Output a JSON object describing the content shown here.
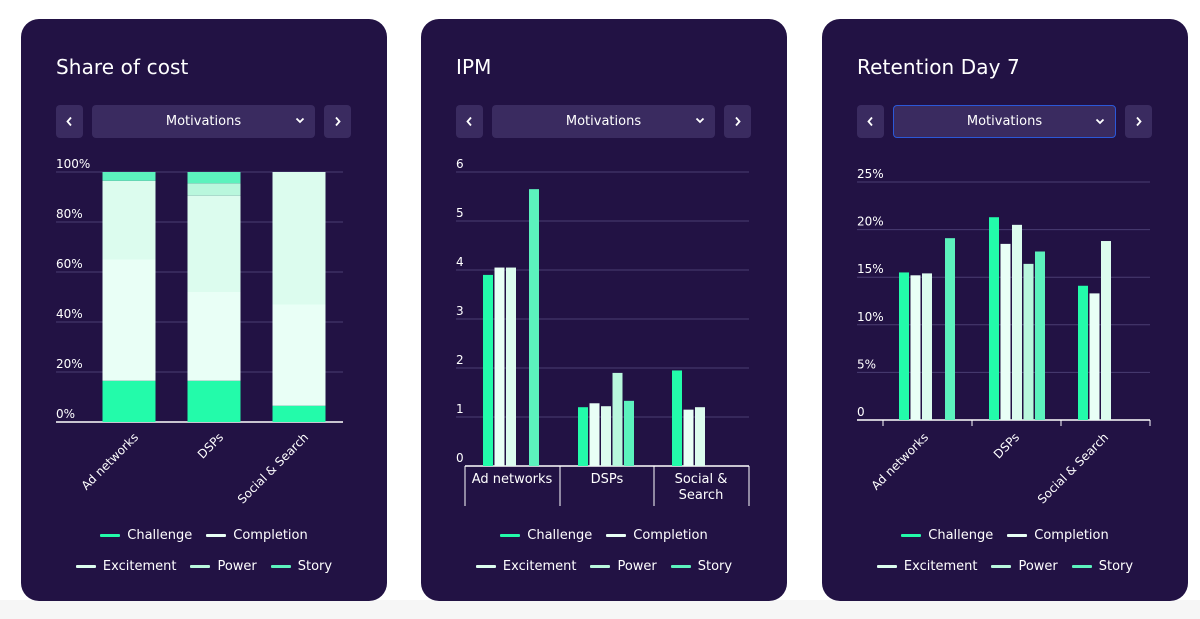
{
  "colors": {
    "card_bg": "#221244",
    "Challenge": "#23fbaa",
    "Completion": "#e9fff6",
    "Excitement": "#dcfcee",
    "Power": "#b9f7dd",
    "Story": "#5cf2bd",
    "grid": "#4a3d72",
    "axis": "#ffffff"
  },
  "dropdown_label": "Motivations",
  "legend": [
    "Challenge",
    "Completion",
    "Excitement",
    "Power",
    "Story"
  ],
  "cards": [
    {
      "title": "Share of cost",
      "chart_data": {
        "type": "bar",
        "stacked": true,
        "categories": [
          "Ad networks",
          "DSPs",
          "Social & Search"
        ],
        "series": [
          {
            "name": "Challenge",
            "values": [
              16.5,
              16.5,
              6.5
            ]
          },
          {
            "name": "Completion",
            "values": [
              48.5,
              35.5,
              40.5
            ]
          },
          {
            "name": "Excitement",
            "values": [
              31.5,
              38.5,
              53
            ]
          },
          {
            "name": "Power",
            "values": [
              0,
              5,
              0
            ]
          },
          {
            "name": "Story",
            "values": [
              3.5,
              4.5,
              0
            ]
          }
        ],
        "yticks": [
          "0%",
          "20%",
          "40%",
          "60%",
          "80%",
          "100%"
        ],
        "ylim": [
          0,
          100
        ],
        "grid": true,
        "legend": "bottom"
      }
    },
    {
      "title": "IPM",
      "chart_data": {
        "type": "bar",
        "categories": [
          "Ad networks",
          "DSPs",
          "Social & Search"
        ],
        "category_lines": [
          [
            "Ad networks"
          ],
          [
            "DSPs"
          ],
          [
            "Social &",
            "Search"
          ]
        ],
        "series": [
          {
            "name": "Challenge",
            "values": [
              3.9,
              1.2,
              1.95
            ]
          },
          {
            "name": "Completion",
            "values": [
              4.05,
              1.28,
              1.15
            ]
          },
          {
            "name": "Excitement",
            "values": [
              4.05,
              1.22,
              1.2
            ]
          },
          {
            "name": "Power",
            "values": [
              null,
              1.9,
              null
            ]
          },
          {
            "name": "Story",
            "values": [
              5.65,
              1.33,
              null
            ]
          }
        ],
        "yticks": [
          "0",
          "1",
          "2",
          "3",
          "4",
          "5",
          "6"
        ],
        "ylim": [
          0,
          6
        ],
        "grid": true,
        "legend": "bottom"
      }
    },
    {
      "title": "Retention Day 7",
      "chart_data": {
        "type": "bar",
        "categories": [
          "Ad networks",
          "DSPs",
          "Social & Search"
        ],
        "series": [
          {
            "name": "Challenge",
            "values": [
              15.5,
              21.3,
              14.1
            ]
          },
          {
            "name": "Completion",
            "values": [
              15.2,
              18.5,
              13.3
            ]
          },
          {
            "name": "Excitement",
            "values": [
              15.4,
              20.5,
              18.8
            ]
          },
          {
            "name": "Power",
            "values": [
              null,
              16.4,
              null
            ]
          },
          {
            "name": "Story",
            "values": [
              19.1,
              17.7,
              null
            ]
          }
        ],
        "yticks": [
          "0",
          "5%",
          "10%",
          "15%",
          "20%",
          "25%"
        ],
        "ylim": [
          0,
          25
        ],
        "grid": true,
        "legend": "bottom"
      }
    }
  ]
}
